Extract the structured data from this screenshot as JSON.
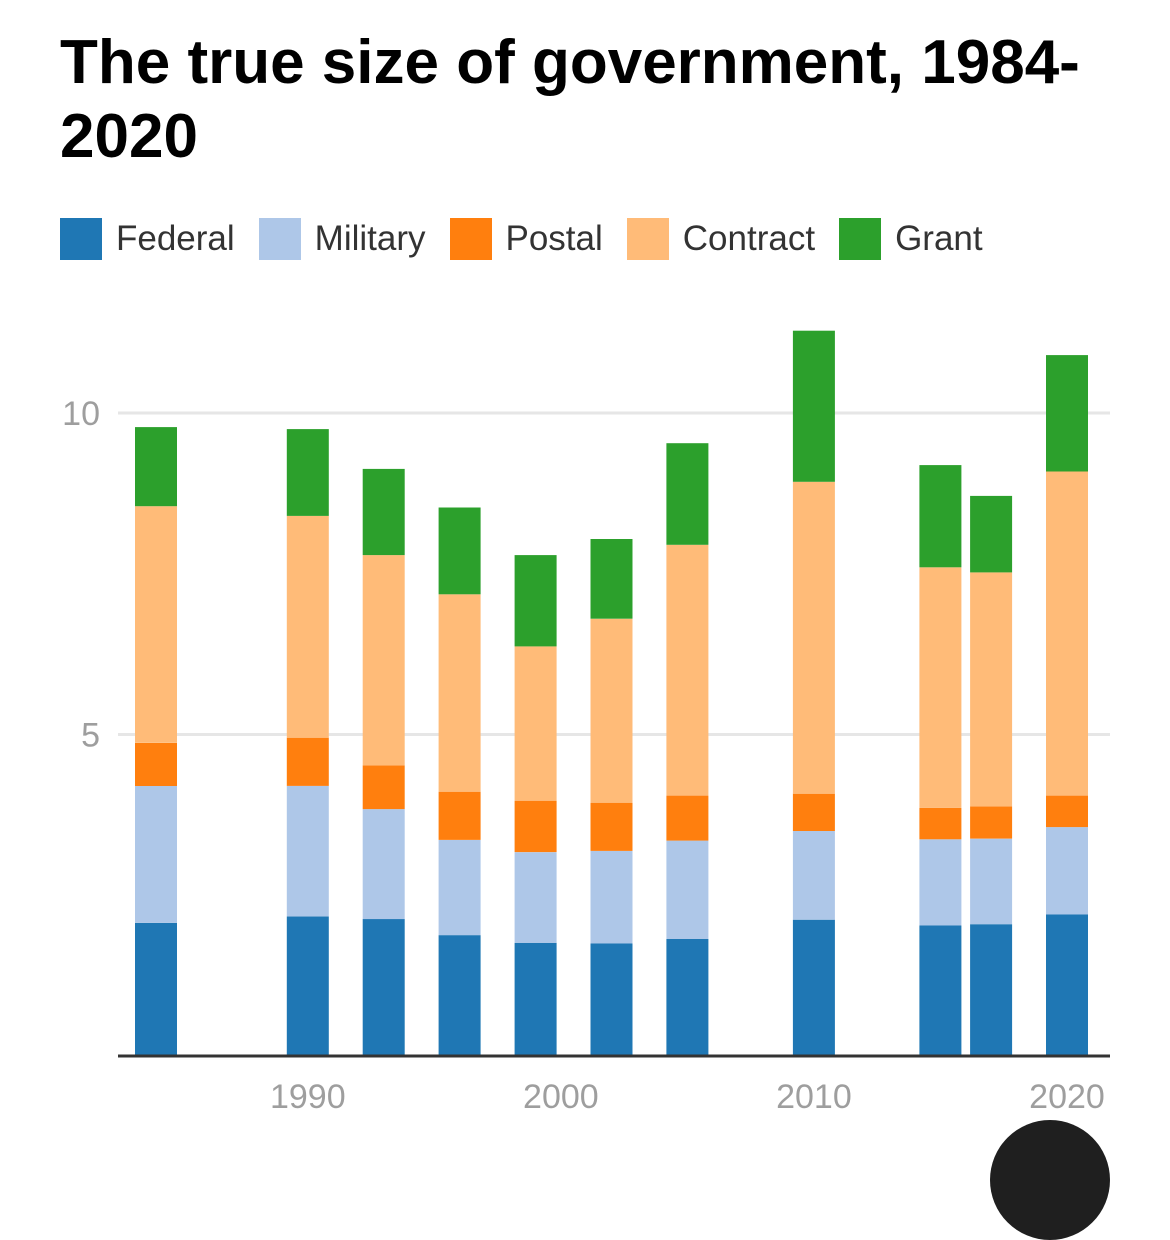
{
  "chart_data": {
    "type": "bar",
    "stacked": true,
    "title": "The true size of government, 1984-2020",
    "x": [
      1984,
      1990,
      1993,
      1996,
      1999,
      2002,
      2005,
      2010,
      2015,
      2017,
      2020
    ],
    "series": [
      {
        "name": "Federal",
        "color": "#1f77b4",
        "values": [
          2.07,
          2.17,
          2.13,
          1.88,
          1.76,
          1.75,
          1.82,
          2.12,
          2.03,
          2.05,
          2.2
        ]
      },
      {
        "name": "Military",
        "color": "#aec7e8",
        "values": [
          2.13,
          2.03,
          1.71,
          1.48,
          1.41,
          1.44,
          1.53,
          1.38,
          1.34,
          1.33,
          1.36
        ]
      },
      {
        "name": "Postal",
        "color": "#ff7f0e",
        "values": [
          0.67,
          0.75,
          0.68,
          0.75,
          0.8,
          0.75,
          0.7,
          0.58,
          0.49,
          0.5,
          0.49
        ]
      },
      {
        "name": "Contract",
        "color": "#ffbb78",
        "values": [
          3.68,
          3.45,
          3.27,
          3.07,
          2.4,
          2.86,
          3.9,
          4.85,
          3.74,
          3.64,
          5.04
        ]
      },
      {
        "name": "Grant",
        "color": "#2ca02c",
        "values": [
          1.23,
          1.35,
          1.34,
          1.35,
          1.42,
          1.24,
          1.58,
          2.35,
          1.59,
          1.19,
          1.81
        ]
      }
    ],
    "xticks": [
      1990,
      2000,
      2010,
      2020
    ],
    "yticks": [
      5,
      10
    ],
    "xlim": [
      1982.5,
      2021.7
    ],
    "ylim": [
      0,
      11.5
    ],
    "grid": true,
    "legend": "top"
  }
}
